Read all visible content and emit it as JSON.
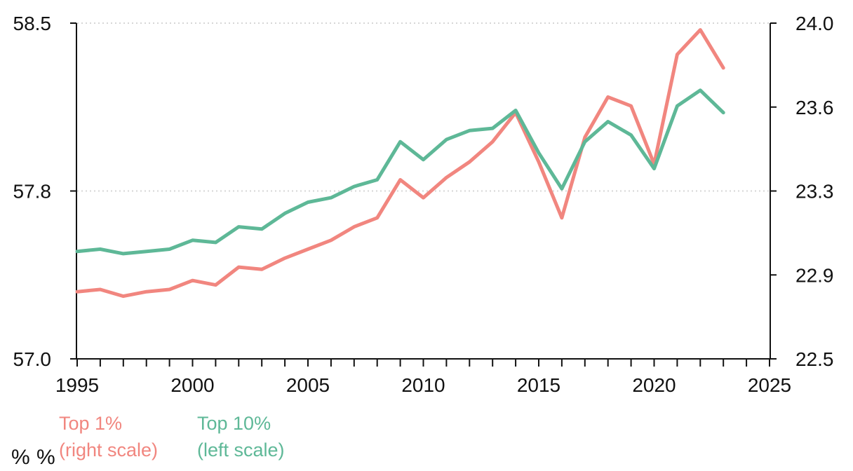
{
  "chart_data": {
    "type": "line",
    "title": "",
    "x": [
      1995,
      1996,
      1997,
      1998,
      1999,
      2000,
      2001,
      2002,
      2003,
      2004,
      2005,
      2006,
      2007,
      2008,
      2009,
      2010,
      2011,
      2012,
      2013,
      2014,
      2015,
      2016,
      2017,
      2018,
      2019,
      2020,
      2021,
      2022,
      2023
    ],
    "series": [
      {
        "name": "Top 1%",
        "scale_note": "(right scale)",
        "axis": "right",
        "color": "#F1867F",
        "values": [
          22.8,
          22.81,
          22.78,
          22.8,
          22.81,
          22.85,
          22.83,
          22.91,
          22.9,
          22.95,
          22.99,
          23.03,
          23.09,
          23.13,
          23.3,
          23.22,
          23.31,
          23.38,
          23.47,
          23.6,
          23.38,
          23.13,
          23.49,
          23.67,
          23.63,
          23.37,
          23.86,
          23.97,
          23.8
        ]
      },
      {
        "name": "Top 10%",
        "scale_note": "(left scale)",
        "axis": "left",
        "color": "#5EB897",
        "values": [
          57.48,
          57.49,
          57.47,
          57.48,
          57.49,
          57.53,
          57.52,
          57.59,
          57.58,
          57.65,
          57.7,
          57.72,
          57.77,
          57.8,
          57.97,
          57.89,
          57.98,
          58.02,
          58.03,
          58.11,
          57.92,
          57.76,
          57.97,
          58.06,
          58.0,
          57.85,
          58.13,
          58.2,
          58.1
        ]
      }
    ],
    "left_axis": {
      "range": [
        57.0,
        58.5
      ],
      "ticks": [
        58.5,
        57.75,
        57.0
      ],
      "tick_labels": [
        "58.5",
        "57.8",
        "57.0"
      ],
      "unit": "%"
    },
    "right_axis": {
      "range": [
        22.5,
        24.0
      ],
      "ticks": [
        24.0,
        23.625,
        23.25,
        22.875,
        22.5
      ],
      "tick_labels": [
        "24.0",
        "23.6",
        "23.3",
        "22.9",
        "22.5"
      ],
      "unit": "%"
    },
    "x_axis": {
      "range": [
        1995,
        2025
      ],
      "minor_tick_interval": 1,
      "major_ticks": [
        1995,
        2000,
        2005,
        2010,
        2015,
        2020,
        2025
      ],
      "major_tick_labels": [
        "1995",
        "2000",
        "2005",
        "2010",
        "2015",
        "2020",
        "2025"
      ]
    },
    "gridlines_at_left_values": [
      58.5,
      57.75
    ],
    "grid_on": true,
    "legend_position": "bottom-left",
    "legend": [
      {
        "label_line1": "Top 1%",
        "label_line2": "(right scale)",
        "color": "#F1867F"
      },
      {
        "label_line1": "Top 10%",
        "label_line2": "(left scale)",
        "color": "#5EB897"
      }
    ],
    "colors": {
      "axis": "#111111",
      "gridline": "#D6D6D6",
      "text": "#111111"
    }
  }
}
